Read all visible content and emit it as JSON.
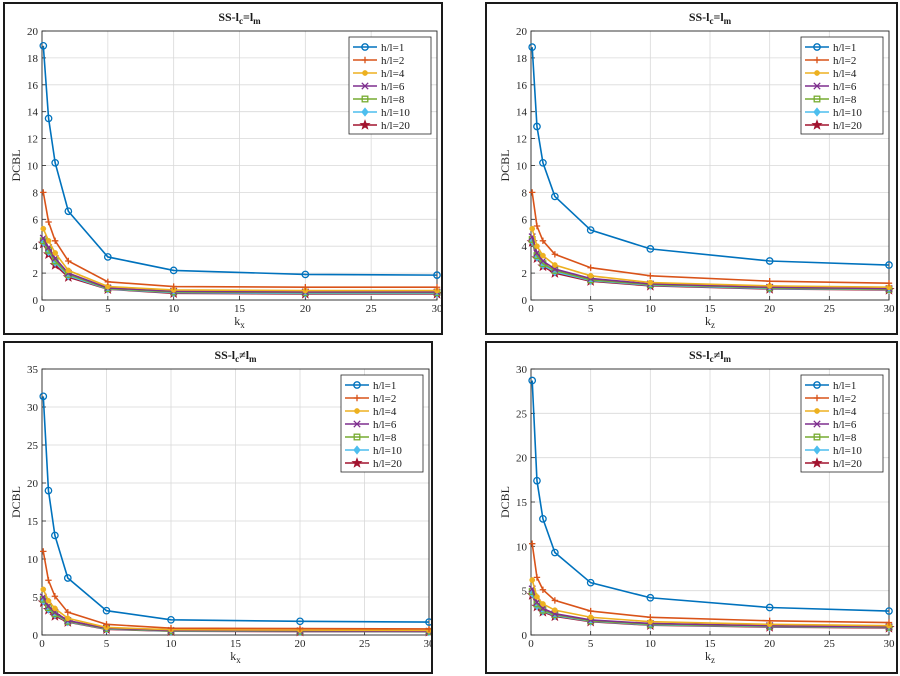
{
  "chart_data": [
    {
      "type": "line",
      "title": "SS-l",
      "title_sub1": "c",
      "title_op": "=l",
      "title_sub2": "m",
      "xlabel": "k",
      "xlabel_sub": "x",
      "ylabel": "DCBL",
      "xlim": [
        0,
        30
      ],
      "ylim": [
        0,
        20
      ],
      "xticks": [
        0,
        5,
        10,
        15,
        20,
        25,
        30
      ],
      "yticks": [
        0,
        2,
        4,
        6,
        8,
        10,
        12,
        14,
        16,
        18,
        20
      ],
      "grid": true,
      "legend_position": "top-right",
      "x": [
        0.1,
        0.5,
        1,
        2,
        5,
        10,
        20,
        30
      ],
      "series": [
        {
          "name": "h/l=1",
          "color": "#0072BD",
          "marker": "circle",
          "values": [
            18.9,
            13.5,
            10.2,
            6.6,
            3.2,
            2.2,
            1.9,
            1.85
          ]
        },
        {
          "name": "h/l=2",
          "color": "#D95319",
          "marker": "plus",
          "values": [
            8.0,
            5.8,
            4.4,
            2.9,
            1.35,
            1.0,
            0.95,
            0.95
          ]
        },
        {
          "name": "h/l=4",
          "color": "#EDB120",
          "marker": "dot",
          "values": [
            5.3,
            4.4,
            3.5,
            2.2,
            1.0,
            0.75,
            0.7,
            0.7
          ]
        },
        {
          "name": "h/l=6",
          "color": "#7E2F8E",
          "marker": "x",
          "values": [
            4.6,
            3.9,
            3.1,
            2.0,
            0.9,
            0.65,
            0.6,
            0.6
          ]
        },
        {
          "name": "h/l=8",
          "color": "#77AC30",
          "marker": "square",
          "values": [
            4.4,
            3.7,
            2.9,
            1.9,
            0.85,
            0.6,
            0.55,
            0.55
          ]
        },
        {
          "name": "h/l=10",
          "color": "#4DBEEE",
          "marker": "diamond",
          "values": [
            4.3,
            3.6,
            2.8,
            1.8,
            0.82,
            0.55,
            0.5,
            0.5
          ]
        },
        {
          "name": "h/l=20",
          "color": "#A2142F",
          "marker": "star",
          "values": [
            4.2,
            3.4,
            2.6,
            1.7,
            0.8,
            0.5,
            0.45,
            0.45
          ]
        }
      ]
    },
    {
      "type": "line",
      "title": "SS-l",
      "title_sub1": "c",
      "title_op": "=l",
      "title_sub2": "m",
      "xlabel": "k",
      "xlabel_sub": "z",
      "ylabel": "DCBL",
      "xlim": [
        0,
        30
      ],
      "ylim": [
        0,
        20
      ],
      "xticks": [
        0,
        5,
        10,
        15,
        20,
        25,
        30
      ],
      "yticks": [
        0,
        2,
        4,
        6,
        8,
        10,
        12,
        14,
        16,
        18,
        20
      ],
      "grid": true,
      "legend_position": "top-right",
      "x": [
        0.1,
        0.5,
        1,
        2,
        5,
        10,
        20,
        30
      ],
      "series": [
        {
          "name": "h/l=1",
          "color": "#0072BD",
          "marker": "circle",
          "values": [
            18.8,
            12.9,
            10.2,
            7.7,
            5.2,
            3.8,
            2.9,
            2.6
          ]
        },
        {
          "name": "h/l=2",
          "color": "#D95319",
          "marker": "plus",
          "values": [
            8.0,
            5.5,
            4.4,
            3.4,
            2.4,
            1.8,
            1.4,
            1.25
          ]
        },
        {
          "name": "h/l=4",
          "color": "#EDB120",
          "marker": "dot",
          "values": [
            5.3,
            4.0,
            3.3,
            2.6,
            1.8,
            1.3,
            1.05,
            0.95
          ]
        },
        {
          "name": "h/l=6",
          "color": "#7E2F8E",
          "marker": "x",
          "values": [
            4.7,
            3.5,
            2.9,
            2.3,
            1.6,
            1.2,
            0.95,
            0.85
          ]
        },
        {
          "name": "h/l=8",
          "color": "#77AC30",
          "marker": "square",
          "values": [
            4.5,
            3.3,
            2.7,
            2.2,
            1.5,
            1.15,
            0.9,
            0.8
          ]
        },
        {
          "name": "h/l=10",
          "color": "#4DBEEE",
          "marker": "diamond",
          "values": [
            4.4,
            3.2,
            2.6,
            2.1,
            1.45,
            1.1,
            0.85,
            0.78
          ]
        },
        {
          "name": "h/l=20",
          "color": "#A2142F",
          "marker": "star",
          "values": [
            4.3,
            3.1,
            2.5,
            2.0,
            1.4,
            1.05,
            0.82,
            0.75
          ]
        }
      ]
    },
    {
      "type": "line",
      "title": "SS-l",
      "title_sub1": "c",
      "title_op": "≠l",
      "title_sub2": "m",
      "xlabel": "k",
      "xlabel_sub": "x",
      "ylabel": "DCBL",
      "xlim": [
        0,
        30
      ],
      "ylim": [
        0,
        35
      ],
      "xticks": [
        0,
        5,
        10,
        15,
        20,
        25,
        30
      ],
      "yticks": [
        0,
        5,
        10,
        15,
        20,
        25,
        30,
        35
      ],
      "grid": true,
      "legend_position": "top-right",
      "x": [
        0.1,
        0.5,
        1,
        2,
        5,
        10,
        20,
        30
      ],
      "series": [
        {
          "name": "h/l=1",
          "color": "#0072BD",
          "marker": "circle",
          "values": [
            31.4,
            19.0,
            13.1,
            7.5,
            3.2,
            2.0,
            1.8,
            1.7
          ]
        },
        {
          "name": "h/l=2",
          "color": "#D95319",
          "marker": "plus",
          "values": [
            11.0,
            7.2,
            5.1,
            3.0,
            1.4,
            0.9,
            0.85,
            0.8
          ]
        },
        {
          "name": "h/l=4",
          "color": "#EDB120",
          "marker": "dot",
          "values": [
            6.0,
            4.5,
            3.5,
            2.2,
            1.0,
            0.7,
            0.65,
            0.6
          ]
        },
        {
          "name": "h/l=6",
          "color": "#7E2F8E",
          "marker": "x",
          "values": [
            5.0,
            3.8,
            3.0,
            1.9,
            0.9,
            0.6,
            0.55,
            0.5
          ]
        },
        {
          "name": "h/l=8",
          "color": "#77AC30",
          "marker": "square",
          "values": [
            4.7,
            3.6,
            2.8,
            1.8,
            0.85,
            0.55,
            0.5,
            0.48
          ]
        },
        {
          "name": "h/l=10",
          "color": "#4DBEEE",
          "marker": "diamond",
          "values": [
            4.5,
            3.4,
            2.7,
            1.75,
            0.8,
            0.52,
            0.48,
            0.45
          ]
        },
        {
          "name": "h/l=20",
          "color": "#A2142F",
          "marker": "star",
          "values": [
            4.3,
            3.3,
            2.5,
            1.7,
            0.75,
            0.5,
            0.45,
            0.42
          ]
        }
      ]
    },
    {
      "type": "line",
      "title": "SS-l",
      "title_sub1": "c",
      "title_op": "≠l",
      "title_sub2": "m",
      "xlabel": "k",
      "xlabel_sub": "z",
      "ylabel": "DCBL",
      "xlim": [
        0,
        30
      ],
      "ylim": [
        0,
        30
      ],
      "xticks": [
        0,
        5,
        10,
        15,
        20,
        25,
        30
      ],
      "yticks": [
        0,
        5,
        10,
        15,
        20,
        25,
        30
      ],
      "grid": true,
      "legend_position": "top-right",
      "x": [
        0.1,
        0.5,
        1,
        2,
        5,
        10,
        20,
        30
      ],
      "series": [
        {
          "name": "h/l=1",
          "color": "#0072BD",
          "marker": "circle",
          "values": [
            28.7,
            17.4,
            13.1,
            9.3,
            5.9,
            4.2,
            3.1,
            2.7
          ]
        },
        {
          "name": "h/l=2",
          "color": "#D95319",
          "marker": "plus",
          "values": [
            10.3,
            6.5,
            5.1,
            3.9,
            2.7,
            2.0,
            1.6,
            1.4
          ]
        },
        {
          "name": "h/l=4",
          "color": "#EDB120",
          "marker": "dot",
          "values": [
            6.2,
            4.3,
            3.5,
            2.8,
            2.0,
            1.5,
            1.2,
            1.05
          ]
        },
        {
          "name": "h/l=6",
          "color": "#7E2F8E",
          "marker": "x",
          "values": [
            5.2,
            3.7,
            3.0,
            2.4,
            1.7,
            1.3,
            1.05,
            0.92
          ]
        },
        {
          "name": "h/l=8",
          "color": "#77AC30",
          "marker": "square",
          "values": [
            4.9,
            3.5,
            2.8,
            2.3,
            1.6,
            1.2,
            1.0,
            0.88
          ]
        },
        {
          "name": "h/l=10",
          "color": "#4DBEEE",
          "marker": "diamond",
          "values": [
            4.7,
            3.3,
            2.7,
            2.2,
            1.55,
            1.15,
            0.95,
            0.85
          ]
        },
        {
          "name": "h/l=20",
          "color": "#A2142F",
          "marker": "star",
          "values": [
            4.5,
            3.2,
            2.6,
            2.1,
            1.5,
            1.1,
            0.9,
            0.8
          ]
        }
      ]
    }
  ]
}
